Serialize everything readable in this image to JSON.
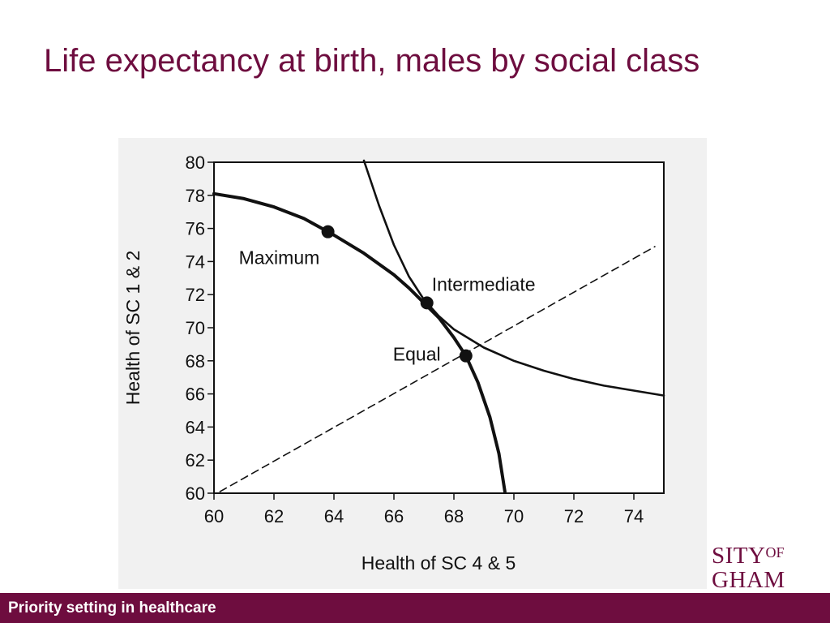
{
  "slide": {
    "title": "Life expectancy at birth, males by social class"
  },
  "footer": {
    "text": "Priority setting in healthcare"
  },
  "logo": {
    "line1": "SITY",
    "line1_sup": "OF",
    "line2": "GHAM"
  },
  "colors": {
    "brand": "#6e0d3f",
    "curve": "#111111",
    "panel": "#f1f1f1"
  },
  "chart_data": {
    "type": "line",
    "title": "",
    "xlabel": "Health of SC 4 & 5",
    "ylabel": "Health of SC 1 & 2",
    "xlim": [
      60,
      75
    ],
    "ylim": [
      60,
      80
    ],
    "xticks": [
      60,
      62,
      64,
      66,
      68,
      70,
      72,
      74
    ],
    "yticks": [
      60,
      62,
      64,
      66,
      68,
      70,
      72,
      74,
      76,
      78,
      80
    ],
    "grid": false,
    "series": [
      {
        "style": "solid",
        "x": [
          60,
          61,
          62,
          63,
          64,
          65,
          66,
          66.5,
          67,
          67.5,
          68,
          68.4,
          68.8,
          69.2,
          69.5,
          69.7
        ],
        "y": [
          78.1,
          77.8,
          77.3,
          76.6,
          75.6,
          74.5,
          73.2,
          72.4,
          71.5,
          70.6,
          69.4,
          68.3,
          66.7,
          64.6,
          62.4,
          60.1
        ]
      },
      {
        "style": "solid",
        "x": [
          65.0,
          65.5,
          66.0,
          66.5,
          67.0,
          67.5,
          68.0,
          69.0,
          70.0,
          71.0,
          72.0,
          73.0,
          74.0,
          75.0
        ],
        "y": [
          80.1,
          77.4,
          75.0,
          73.1,
          71.7,
          70.7,
          69.9,
          68.8,
          68.0,
          67.4,
          66.9,
          66.5,
          66.2,
          65.9
        ]
      },
      {
        "style": "dashed",
        "x": [
          60.2,
          74.7
        ],
        "y": [
          60.1,
          74.9
        ]
      }
    ],
    "points": [
      {
        "label": "Maximum",
        "x": 63.8,
        "y": 75.8
      },
      {
        "label": "Intermediate",
        "x": 67.1,
        "y": 71.5
      },
      {
        "label": "Equal",
        "x": 68.4,
        "y": 68.3
      }
    ]
  }
}
